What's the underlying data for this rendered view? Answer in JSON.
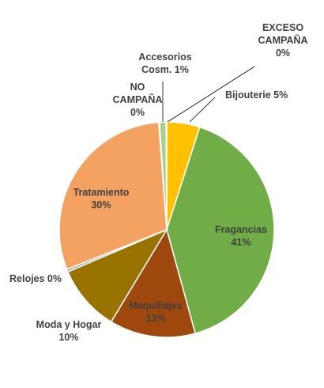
{
  "chart_data": {
    "type": "pie",
    "title": "",
    "categories": [
      "Bijouterie",
      "Fragancias",
      "Maquillajes",
      "Moda y Hogar",
      "Relojes",
      "Tratamiento",
      "NO CAMPAÑA",
      "Accesorios Cosm.",
      "EXCESO CAMPAÑA"
    ],
    "values": [
      5,
      41,
      13,
      10,
      0.4,
      30,
      0.1,
      1,
      0.1
    ],
    "display_labels": [
      [
        "Bijouterie 5%"
      ],
      [
        "Fragancias",
        "41%"
      ],
      [
        "Maquillajes",
        "13%"
      ],
      [
        "Moda y Hogar",
        "10%"
      ],
      [
        "Relojes 0%"
      ],
      [
        "Tratamiento",
        "30%"
      ],
      [
        "NO",
        "CAMPAÑA",
        "0%"
      ],
      [
        "Accesorios",
        "Cosm. 1%"
      ],
      [
        "EXCESO",
        "CAMPAÑA",
        "0%"
      ]
    ],
    "colors": [
      "#ffc000",
      "#70ad47",
      "#9e480e",
      "#997300",
      "#a5a5a5",
      "#f4a261",
      "#ffffff",
      "#a9d18e",
      "#ffffff"
    ],
    "start_angle_deg": 0,
    "direction": "clockwise",
    "legend": "none"
  }
}
